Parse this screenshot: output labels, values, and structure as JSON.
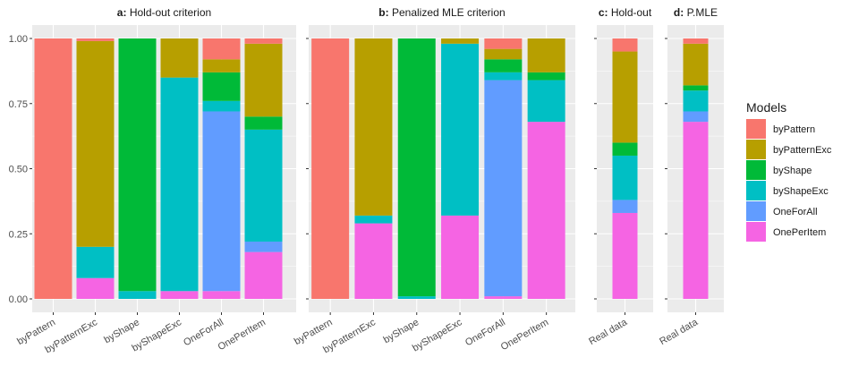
{
  "chart_data": {
    "type": "bar",
    "stacked": true,
    "colors": {
      "byPattern": "#F8766D",
      "byPatternExc": "#B79F00",
      "byShape": "#00BA38",
      "byShapeExc": "#00BFC4",
      "OneForAll": "#619CFF",
      "OnePerItem": "#F564E3"
    },
    "ylim": [
      0,
      1
    ],
    "yticks": [
      "0.00",
      "0.25",
      "0.50",
      "0.75",
      "1.00"
    ],
    "legend": {
      "title": "Models",
      "position": "right",
      "items": [
        "byPattern",
        "byPatternExc",
        "byShape",
        "byShapeExc",
        "OneForAll",
        "OnePerItem"
      ]
    },
    "panels": [
      {
        "label": "a:",
        "title": "Hold-out criterion",
        "categories": [
          "byPattern",
          "byPatternExc",
          "byShape",
          "byShapeExc",
          "OneForAll",
          "OnePerItem"
        ],
        "series": [
          {
            "name": "byPattern",
            "values": [
              1.0,
              0.01,
              0.0,
              0.0,
              0.08,
              0.02
            ]
          },
          {
            "name": "byPatternExc",
            "values": [
              0.0,
              0.79,
              0.0,
              0.15,
              0.05,
              0.28
            ]
          },
          {
            "name": "byShape",
            "values": [
              0.0,
              0.0,
              0.97,
              0.0,
              0.11,
              0.05
            ]
          },
          {
            "name": "byShapeExc",
            "values": [
              0.0,
              0.12,
              0.03,
              0.82,
              0.04,
              0.43
            ]
          },
          {
            "name": "OneForAll",
            "values": [
              0.0,
              0.0,
              0.0,
              0.0,
              0.69,
              0.04
            ]
          },
          {
            "name": "OnePerItem",
            "values": [
              0.0,
              0.08,
              0.0,
              0.03,
              0.03,
              0.18
            ]
          }
        ]
      },
      {
        "label": "b:",
        "title": "Penalized MLE criterion",
        "categories": [
          "byPattern",
          "byPatternExc",
          "byShape",
          "byShapeExc",
          "OneForAll",
          "OnePerItem"
        ],
        "series": [
          {
            "name": "byPattern",
            "values": [
              1.0,
              0.0,
              0.0,
              0.0,
              0.04,
              0.0
            ]
          },
          {
            "name": "byPatternExc",
            "values": [
              0.0,
              0.68,
              0.0,
              0.02,
              0.04,
              0.13
            ]
          },
          {
            "name": "byShape",
            "values": [
              0.0,
              0.0,
              0.99,
              0.0,
              0.05,
              0.03
            ]
          },
          {
            "name": "byShapeExc",
            "values": [
              0.0,
              0.03,
              0.01,
              0.66,
              0.03,
              0.16
            ]
          },
          {
            "name": "OneForAll",
            "values": [
              0.0,
              0.0,
              0.0,
              0.0,
              0.83,
              0.0
            ]
          },
          {
            "name": "OnePerItem",
            "values": [
              0.0,
              0.29,
              0.0,
              0.32,
              0.01,
              0.68
            ]
          }
        ]
      },
      {
        "label": "c:",
        "title": "Hold-out",
        "categories": [
          "Real data"
        ],
        "series": [
          {
            "name": "byPattern",
            "values": [
              0.05
            ]
          },
          {
            "name": "byPatternExc",
            "values": [
              0.35
            ]
          },
          {
            "name": "byShape",
            "values": [
              0.05
            ]
          },
          {
            "name": "byShapeExc",
            "values": [
              0.17
            ]
          },
          {
            "name": "OneForAll",
            "values": [
              0.05
            ]
          },
          {
            "name": "OnePerItem",
            "values": [
              0.33
            ]
          }
        ]
      },
      {
        "label": "d:",
        "title": "P.MLE",
        "categories": [
          "Real data"
        ],
        "series": [
          {
            "name": "byPattern",
            "values": [
              0.02
            ]
          },
          {
            "name": "byPatternExc",
            "values": [
              0.16
            ]
          },
          {
            "name": "byShape",
            "values": [
              0.02
            ]
          },
          {
            "name": "byShapeExc",
            "values": [
              0.08
            ]
          },
          {
            "name": "OneForAll",
            "values": [
              0.04
            ]
          },
          {
            "name": "OnePerItem",
            "values": [
              0.68
            ]
          }
        ]
      }
    ]
  }
}
